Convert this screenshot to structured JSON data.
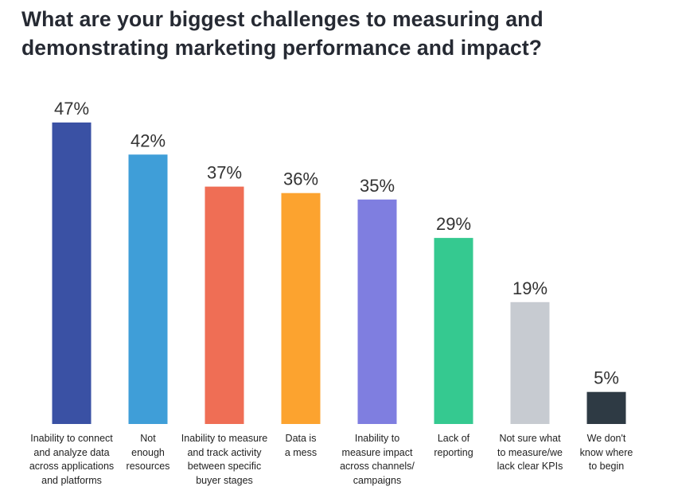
{
  "title_lines": [
    "What are your biggest challenges to measuring and",
    "demonstrating marketing performance and impact?"
  ],
  "chart_data": {
    "type": "bar",
    "title": "What are your biggest challenges to measuring and demonstrating marketing performance and impact?",
    "categories": [
      "Inability to connect and analyze data across applications and platforms",
      "Not enough resources",
      "Inability to measure and track activity between specific buyer stages",
      "Data is a mess",
      "Inability to measure impact across channels/ campaigns",
      "Lack of reporting",
      "Not sure what to measure/we lack clear KPIs",
      "We don't know where to begin"
    ],
    "category_lines": [
      [
        "Inability to connect",
        "and analyze data",
        "across applications",
        "and platforms"
      ],
      [
        "Not",
        "enough",
        "resources"
      ],
      [
        "Inability to measure",
        "and track activity",
        "between specific",
        "buyer stages"
      ],
      [
        "Data is",
        "a mess"
      ],
      [
        "Inability to",
        "measure impact",
        "across channels/",
        "campaigns"
      ],
      [
        "Lack of",
        "reporting"
      ],
      [
        "Not sure what",
        "to measure/we",
        "lack clear KPIs"
      ],
      [
        "We don't",
        "know where",
        "to begin"
      ]
    ],
    "values": [
      47,
      42,
      37,
      36,
      35,
      29,
      19,
      5
    ],
    "value_labels": [
      "47%",
      "42%",
      "37%",
      "36%",
      "35%",
      "29%",
      "19%",
      "5%"
    ],
    "colors": [
      "#3a51a4",
      "#3f9ed8",
      "#ef6e55",
      "#fca32f",
      "#7f7ee0",
      "#35c990",
      "#c7cbd1",
      "#2e3a44"
    ],
    "ylim": [
      0,
      47
    ],
    "grid": false,
    "legend": "none",
    "xlabel": "",
    "ylabel": ""
  }
}
